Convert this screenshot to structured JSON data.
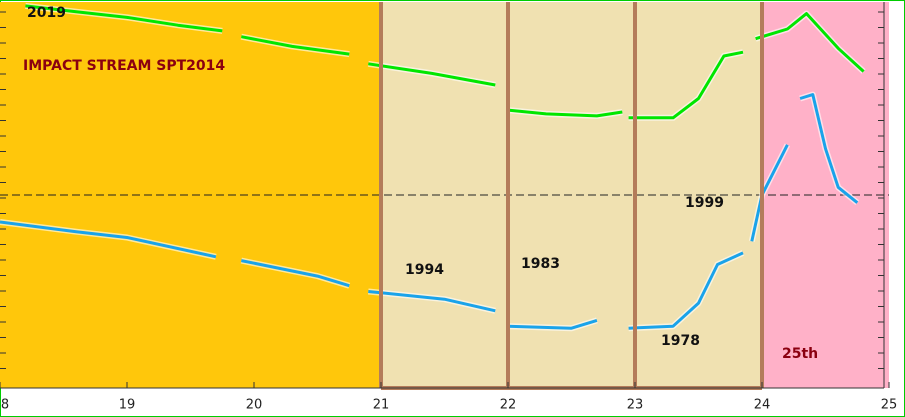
{
  "chart_data": {
    "type": "line",
    "annotations": [
      "2019",
      "IMPACT STREAM SPT2014",
      "1994",
      "1983",
      "1999",
      "1978",
      "25th"
    ],
    "xlim": [
      18,
      25
    ],
    "ylim": [
      0,
      100
    ],
    "xticks": [
      {
        "value": 18,
        "label": "8"
      },
      19,
      20,
      21,
      22,
      23,
      24,
      25
    ],
    "regions": [
      {
        "from": 18,
        "to": 21,
        "color": "#ffc70b"
      },
      {
        "from": 21,
        "to": 24,
        "color": "#f0e1b1"
      },
      {
        "from": 24,
        "to": 25,
        "color": "#ffb1c8"
      }
    ],
    "dividers": [
      21,
      22,
      23,
      24
    ],
    "divider_color": "#b47c5a",
    "reference_line": 50,
    "series": [
      {
        "name": null,
        "color": "#00e600",
        "x": [
          18.2,
          18.6,
          19,
          19.4,
          19.75,
          null,
          19.9,
          20.3,
          20.75,
          null,
          20.9,
          21.4,
          21.9,
          null,
          22.0,
          22.3,
          22.7,
          22.9,
          null,
          22.95,
          23.3,
          23.5,
          23.7,
          23.85,
          null,
          23.95,
          24.2,
          24.35,
          24.6,
          24.8
        ],
        "values": [
          99,
          97.5,
          96,
          94,
          92.5,
          null,
          91,
          88.5,
          86.5,
          null,
          84,
          81.5,
          78.5,
          null,
          72,
          71,
          70.5,
          71.5,
          null,
          70,
          70,
          75,
          86,
          87,
          null,
          90.5,
          93,
          97,
          88,
          82
        ]
      },
      {
        "name": null,
        "color": "#1aa3ea",
        "x": [
          18.0,
          18.6,
          19,
          19.7,
          null,
          19.9,
          20.5,
          20.75,
          null,
          20.9,
          21.5,
          21.9,
          null,
          22.0,
          22.5,
          22.7,
          null,
          22.95,
          23.3,
          23.5,
          23.65,
          23.85,
          null,
          23.92,
          24.0,
          24.2,
          null,
          24.3,
          24.4,
          24.5,
          24.6,
          24.75
        ],
        "values": [
          43,
          40.5,
          39,
          34,
          null,
          33,
          29,
          26.5,
          null,
          25,
          23,
          20,
          null,
          16,
          15.5,
          17.5,
          null,
          15.5,
          16,
          22,
          32,
          35,
          null,
          38,
          50,
          63,
          null,
          75,
          76,
          62,
          52,
          48
        ]
      }
    ]
  }
}
